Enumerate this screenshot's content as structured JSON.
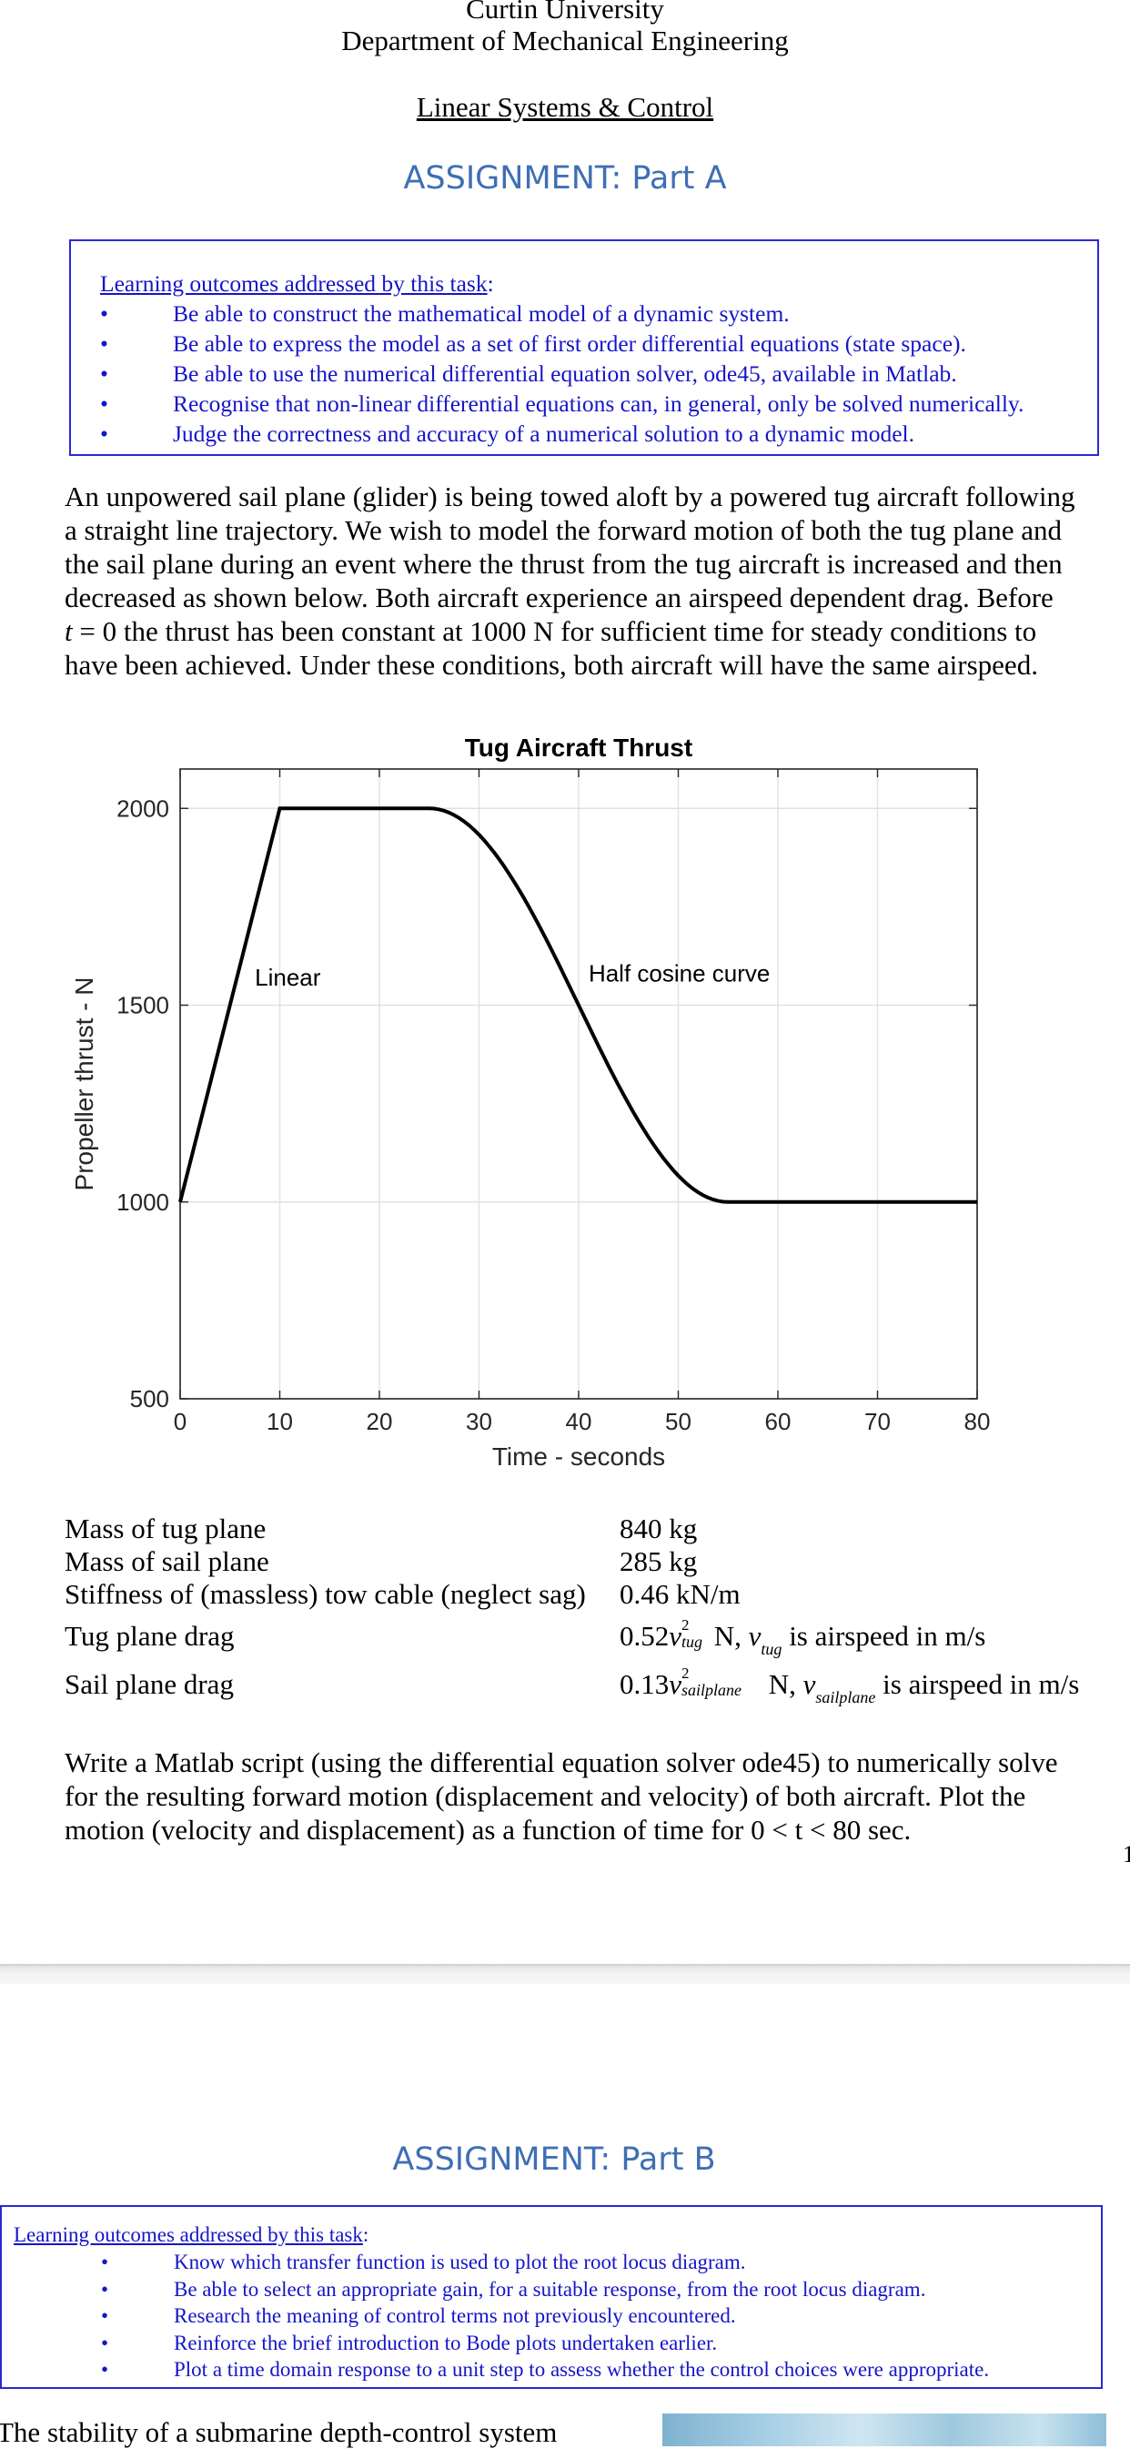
{
  "header": {
    "university": "Curtin University",
    "department": "Department of Mechanical Engineering",
    "course": "Linear Systems & Control"
  },
  "part_a": {
    "title": "ASSIGNMENT: Part  A",
    "outcomes_lead": "Learning outcomes addressed by this task",
    "outcomes_colon": ":",
    "outcomes": [
      "Be able to construct the mathematical model of a dynamic system.",
      "Be able to express the model as a set of first order differential equations (state space).",
      "Be able to use the numerical differential equation solver, ode45, available in Matlab.",
      "Recognise that non-linear differential equations can, in general, only be solved numerically.",
      "Judge the correctness and accuracy of a numerical solution to a dynamic model."
    ],
    "intro_lines": [
      "An unpowered sail plane (glider) is being towed aloft by a powered tug aircraft following",
      "a straight line trajectory.  We wish to model the forward motion of both the tug plane and",
      "the sail plane during an event where the thrust from the tug aircraft is increased and then",
      "decreased as shown below.  Both aircraft experience an airspeed dependent drag.  Before"
    ],
    "intro_line5_var": "t",
    "intro_line5_rest": " = 0 the thrust has been constant at 1000 N for sufficient time for steady conditions to",
    "intro_line6": "have been achieved.  Under these conditions, both aircraft will have the same airspeed.",
    "params": [
      {
        "label": "Mass of tug plane",
        "value": "840 kg"
      },
      {
        "label": "Mass of sail plane",
        "value": "285 kg"
      },
      {
        "label": "Stiffness of (massless) tow cable (neglect sag)",
        "value": "0.46 kN/m"
      }
    ],
    "drag": [
      {
        "label": "Tug plane drag",
        "coef": "0.52",
        "var": "v",
        "sup": "2",
        "sub": "tug",
        "mid": " N, ",
        "tail": " is airspeed in m/s"
      },
      {
        "label": "Sail plane drag",
        "coef": "0.13",
        "var": "v",
        "sup": "2",
        "sub": "sailplane",
        "mid": " N, ",
        "tail": " is airspeed in m/s"
      }
    ],
    "task_lines": [
      "Write a Matlab script (using the differential equation solver ode45) to numerically solve",
      "for the resulting forward motion (displacement and velocity) of both aircraft.  Plot the",
      "motion (velocity and displacement) as a function of time for 0 < t < 80 sec."
    ],
    "edge_mark": "1"
  },
  "chart_data": {
    "type": "line",
    "title": "Tug Aircraft Thrust",
    "xlabel": "Time - seconds",
    "ylabel": "Propeller thrust - N",
    "xlim": [
      0,
      80
    ],
    "ylim": [
      500,
      2100
    ],
    "xticks": [
      0,
      10,
      20,
      30,
      40,
      50,
      60,
      70,
      80
    ],
    "yticks": [
      500,
      1000,
      1500,
      2000
    ],
    "grid": true,
    "series": [
      {
        "segments": [
          {
            "kind": "linear",
            "x": [
              0,
              10
            ],
            "y": [
              1000,
              2000
            ]
          },
          {
            "kind": "constant",
            "x": [
              10,
              25
            ],
            "y": 2000
          },
          {
            "kind": "half-cosine",
            "x": [
              25,
              55
            ],
            "y": [
              2000,
              1000
            ]
          },
          {
            "kind": "constant",
            "x": [
              55,
              80
            ],
            "y": 1000
          }
        ]
      }
    ],
    "annotations": [
      {
        "text": "Linear",
        "x": 7.5,
        "y": 1550
      },
      {
        "text": "Half cosine curve",
        "x": 41,
        "y": 1560
      }
    ]
  },
  "part_b": {
    "title": "ASSIGNMENT: Part B",
    "outcomes_lead": "Learning outcomes addressed by this task",
    "outcomes_colon": ":",
    "outcomes": [
      "Know which transfer function is used to plot the root locus diagram.",
      "Be able to select an appropriate gain, for a suitable response, from the root locus diagram.",
      "Research the meaning of control terms not previously encountered.",
      "Reinforce the brief introduction to Bode plots undertaken earlier.",
      "Plot a time domain response to a unit step to assess whether the control choices were appropriate."
    ],
    "intro": "The stability of a submarine depth-control system"
  }
}
